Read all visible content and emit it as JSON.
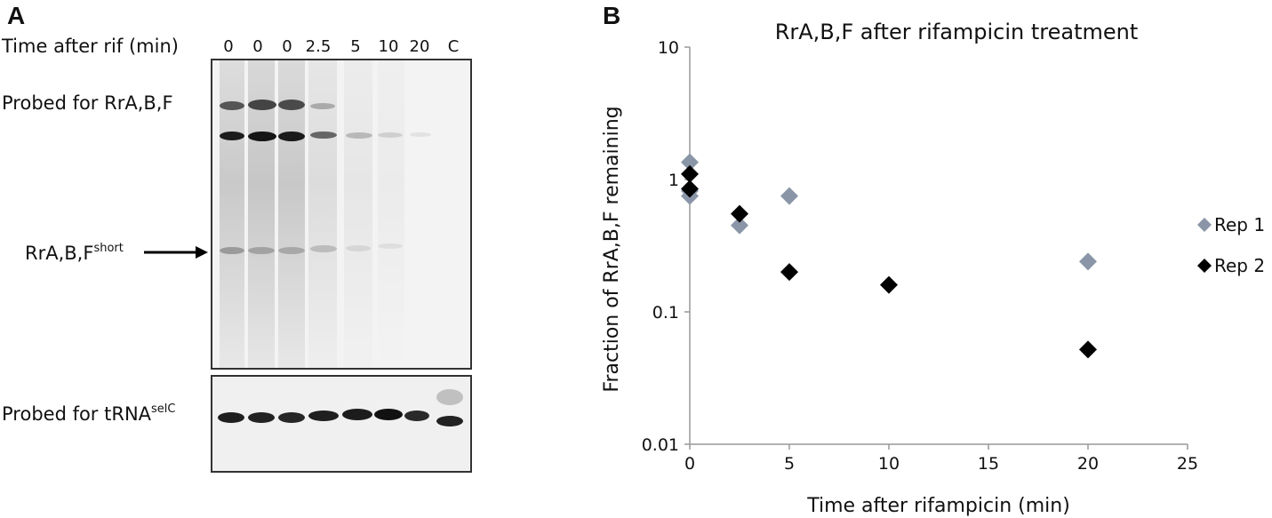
{
  "panel_a": {
    "letter": "A",
    "time_label": "Time after rif (min)",
    "lanes": [
      "0",
      "0",
      "0",
      "2.5",
      "5",
      "10",
      "20",
      "C"
    ],
    "probe_top_label": "Probed for RrA,B,F",
    "short_label_base": "RrA,B,F",
    "short_label_sup": "short",
    "probe_bottom_label_base": "Probed for tRNA",
    "probe_bottom_label_sup": "selC"
  },
  "panel_b": {
    "letter": "B"
  },
  "chart_data": {
    "type": "scatter",
    "title": "RrA,B,F after rifampicin treatment",
    "xlabel": "Time after rifampicin (min)",
    "ylabel": "Fraction of RrA,B,F remaining",
    "xlim": [
      0,
      25
    ],
    "ylim": [
      0.01,
      10
    ],
    "yscale": "log",
    "xticks": [
      "0",
      "5",
      "10",
      "15",
      "20",
      "25"
    ],
    "yticks": [
      "0.01",
      "0.1",
      "1",
      "10"
    ],
    "legend_position": "right",
    "series": [
      {
        "name": "Rep 1",
        "color": "#8a96a8",
        "marker": "diamond",
        "points": [
          [
            0,
            1.35
          ],
          [
            0,
            0.75
          ],
          [
            0,
            0.82
          ],
          [
            2.5,
            0.45
          ],
          [
            5,
            0.75
          ],
          [
            20,
            0.24
          ]
        ]
      },
      {
        "name": "Rep 2",
        "color": "#000000",
        "marker": "diamond",
        "points": [
          [
            0,
            1.1
          ],
          [
            0,
            0.85
          ],
          [
            2.5,
            0.55
          ],
          [
            5,
            0.2
          ],
          [
            10,
            0.16
          ],
          [
            20,
            0.052
          ]
        ]
      }
    ]
  }
}
